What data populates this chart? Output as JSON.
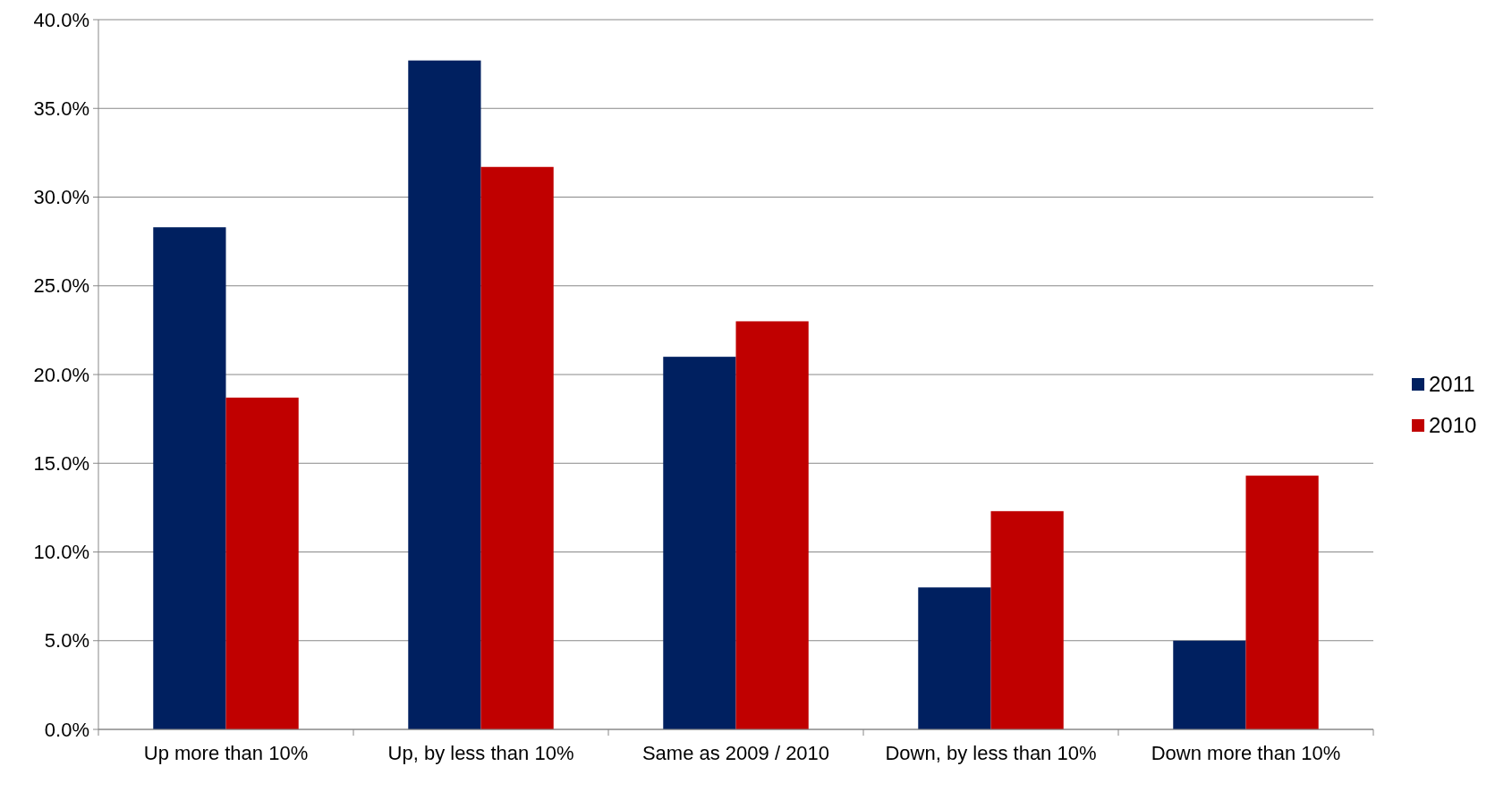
{
  "chart_data": {
    "type": "bar",
    "categories": [
      "Up more than 10%",
      "Up, by less than 10%",
      "Same as 2009 / 2010",
      "Down, by less than 10%",
      "Down more than 10%"
    ],
    "series": [
      {
        "name": "2011",
        "color": "#002060",
        "values": [
          28.3,
          37.7,
          21.0,
          8.0,
          5.0
        ]
      },
      {
        "name": "2010",
        "color": "#c00000",
        "values": [
          18.7,
          31.7,
          23.0,
          12.3,
          14.3
        ]
      }
    ],
    "ylim": [
      0,
      40
    ],
    "yticks": [
      {
        "value": 0,
        "label": "0.0%"
      },
      {
        "value": 5,
        "label": "5.0%"
      },
      {
        "value": 10,
        "label": "10.0%"
      },
      {
        "value": 15,
        "label": "15.0%"
      },
      {
        "value": 20,
        "label": "20.0%"
      },
      {
        "value": 25,
        "label": "25.0%"
      },
      {
        "value": 30,
        "label": "30.0%"
      },
      {
        "value": 35,
        "label": "35.0%"
      },
      {
        "value": 40,
        "label": "40.0%"
      }
    ],
    "grid": "y",
    "legend": "right"
  }
}
